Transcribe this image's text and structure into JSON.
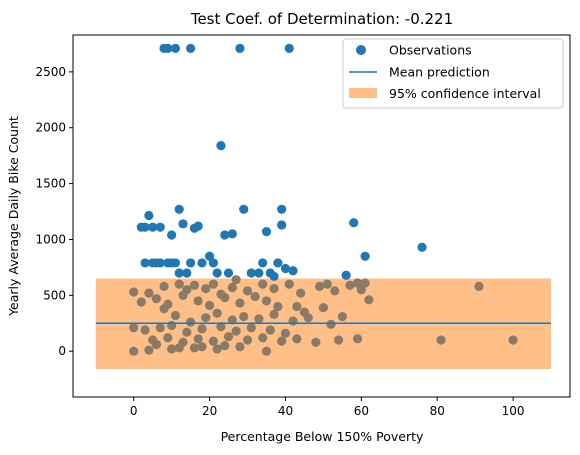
{
  "chart_data": {
    "type": "scatter",
    "title": "Test Coef. of Determination: -0.221",
    "xlabel": "Percentage Below 150% Poverty",
    "ylabel": "Yearly Average Daily Bike Count",
    "xlim": [
      -16,
      115
    ],
    "ylim": [
      -410,
      2830
    ],
    "xticks": [
      0,
      20,
      40,
      60,
      80,
      100
    ],
    "yticks": [
      0,
      500,
      1000,
      1500,
      2000,
      2500
    ],
    "grid": false,
    "legend_position": "top-right",
    "legend": {
      "observations": "Observations",
      "mean": "Mean prediction",
      "interval": "95% confidence interval"
    },
    "colors": {
      "observations": "#1f77b4",
      "mean": "#1f77b4",
      "interval": "#ffbf86",
      "overlap_points": "#8a7a68"
    },
    "mean_prediction": {
      "x": [
        -10,
        110
      ],
      "y": [
        250,
        250
      ]
    },
    "confidence_interval": {
      "x": [
        -10,
        110
      ],
      "lower": [
        -160,
        -160
      ],
      "upper": [
        650,
        650
      ]
    },
    "observations": {
      "x": [
        8,
        9,
        11,
        15,
        28,
        41,
        23,
        4,
        5,
        3,
        2,
        7,
        12,
        13,
        10,
        16,
        17,
        24,
        26,
        29,
        34,
        35,
        38,
        39,
        39,
        37,
        40,
        42,
        58,
        60,
        76,
        56,
        61,
        3,
        5,
        6,
        7,
        9,
        10,
        11,
        12,
        14,
        15,
        18,
        20,
        21,
        22,
        25,
        27,
        31,
        33,
        36,
        8,
        12,
        14,
        16,
        19,
        21,
        23,
        26,
        30,
        34,
        37,
        41,
        44,
        49,
        51,
        53,
        57,
        59,
        61,
        62,
        43,
        4,
        6,
        9,
        13,
        17,
        20,
        24,
        28,
        32,
        35,
        38,
        45,
        50,
        55,
        0,
        2,
        8,
        11,
        15,
        19,
        22,
        26,
        29,
        33,
        37,
        42,
        46,
        52,
        3,
        7,
        10,
        14,
        18,
        23,
        27,
        31,
        36,
        40,
        0,
        5,
        9,
        13,
        17,
        21,
        25,
        30,
        34,
        39,
        43,
        48,
        54,
        59,
        81,
        100,
        91,
        6,
        12,
        18,
        24,
        0,
        4,
        10,
        16,
        22,
        28,
        35
      ],
      "y": [
        2710,
        2710,
        2710,
        2710,
        2710,
        2710,
        1840,
        1215,
        1110,
        1110,
        1110,
        1110,
        1270,
        1140,
        1040,
        1100,
        1120,
        1040,
        1050,
        1270,
        790,
        1070,
        790,
        1130,
        1270,
        670,
        740,
        720,
        1150,
        550,
        930,
        680,
        850,
        790,
        790,
        790,
        790,
        790,
        790,
        790,
        700,
        700,
        790,
        790,
        850,
        790,
        700,
        700,
        640,
        700,
        700,
        700,
        580,
        600,
        550,
        590,
        560,
        600,
        510,
        570,
        540,
        600,
        560,
        600,
        520,
        580,
        600,
        540,
        590,
        610,
        610,
        460,
        400,
        520,
        470,
        420,
        500,
        450,
        410,
        480,
        430,
        490,
        450,
        400,
        350,
        390,
        310,
        530,
        440,
        380,
        320,
        260,
        300,
        340,
        280,
        310,
        290,
        330,
        270,
        300,
        240,
        190,
        210,
        230,
        170,
        200,
        220,
        180,
        210,
        190,
        160,
        210,
        100,
        120,
        80,
        110,
        90,
        130,
        100,
        120,
        90,
        110,
        80,
        100,
        110,
        100,
        100,
        580,
        60,
        30,
        40,
        50,
        0,
        10,
        20,
        30,
        20,
        40,
        0
      ]
    }
  }
}
